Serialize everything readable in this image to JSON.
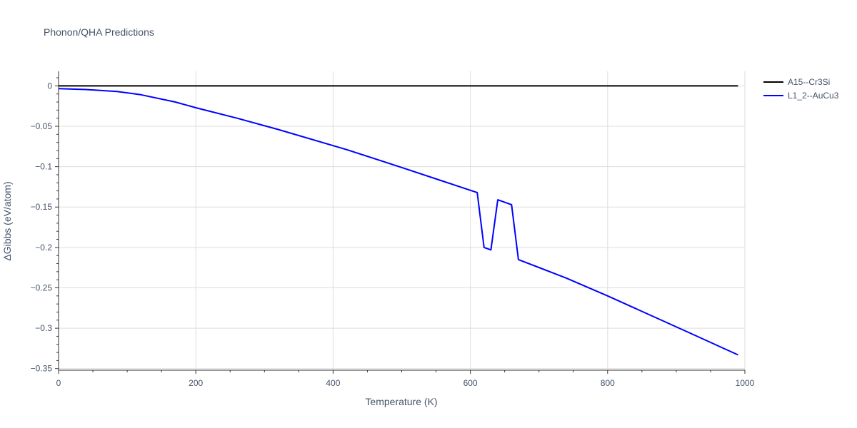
{
  "chart_data": {
    "type": "line",
    "title": "Phonon/QHA Predictions",
    "xlabel": "Temperature (K)",
    "ylabel": "ΔGibbs (eV/atom)",
    "xlim": [
      0,
      1000
    ],
    "ylim": [
      -0.352,
      0.018
    ],
    "xticks": [
      0,
      200,
      400,
      600,
      800,
      1000
    ],
    "xtick_labels": [
      "0",
      "200",
      "400",
      "600",
      "800",
      "1000"
    ],
    "yticks": [
      0,
      -0.05,
      -0.1,
      -0.15,
      -0.2,
      -0.25,
      -0.3,
      -0.35
    ],
    "ytick_labels": [
      "0",
      "−0.05",
      "−0.1",
      "−0.15",
      "−0.2",
      "−0.25",
      "−0.3",
      "−0.35"
    ],
    "grid": true,
    "legend_position": "top-right",
    "series": [
      {
        "name": "A15--Cr3Si",
        "color": "#000000",
        "x": [
          0,
          990
        ],
        "y": [
          0,
          0
        ]
      },
      {
        "name": "L1_2--AuCu3",
        "color": "#0000ff",
        "x": [
          0,
          40,
          85,
          120,
          170,
          200,
          260,
          320,
          420,
          500,
          560,
          610,
          620,
          630,
          640,
          660,
          670,
          740,
          800,
          860,
          920,
          990
        ],
        "y": [
          -0.0035,
          -0.0045,
          -0.007,
          -0.011,
          -0.02,
          -0.027,
          -0.04,
          -0.054,
          -0.079,
          -0.101,
          -0.118,
          -0.132,
          -0.2,
          -0.203,
          -0.141,
          -0.147,
          -0.215,
          -0.238,
          -0.26,
          -0.283,
          -0.306,
          -0.333
        ]
      }
    ]
  }
}
